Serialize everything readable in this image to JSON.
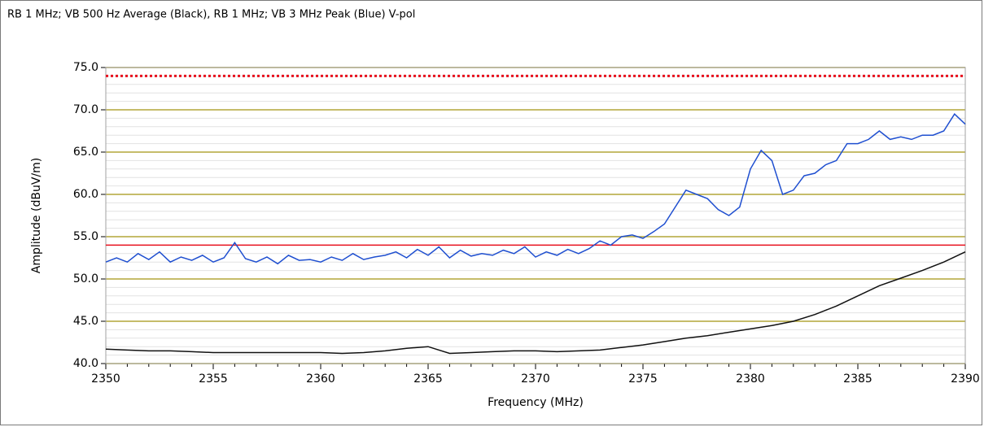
{
  "chart_data": {
    "type": "line",
    "title": "RB 1 MHz; VB 500 Hz Average (Black), RB 1 MHz; VB 3 MHz Peak (Blue) V-pol",
    "xlabel": "Frequency (MHz)",
    "ylabel": "Amplitude (dBuV/m)",
    "xlim": [
      2350,
      2390
    ],
    "ylim": [
      40,
      75
    ],
    "xticks": [
      2350,
      2355,
      2360,
      2365,
      2370,
      2375,
      2380,
      2385,
      2390
    ],
    "yticks": [
      {
        "value": 40,
        "label": "40.0"
      },
      {
        "value": 45,
        "label": "45.0"
      },
      {
        "value": 50,
        "label": "50.0"
      },
      {
        "value": 55,
        "label": "55.0"
      },
      {
        "value": 60,
        "label": "60.0"
      },
      {
        "value": 65,
        "label": "65.0"
      },
      {
        "value": 70,
        "label": "70.0"
      },
      {
        "value": 75,
        "label": "75.0"
      }
    ],
    "grid": true,
    "grid_color": "#b3a638",
    "minor_grid_color": "#e2e2e2",
    "limits": [
      {
        "value": 74,
        "color": "#e8101e",
        "style": "dotted"
      },
      {
        "value": 54,
        "color": "#e8101e",
        "style": "solid"
      }
    ],
    "series": [
      {
        "color": "#1f4fd0",
        "x": [
          2350,
          2350.5,
          2351,
          2351.5,
          2352,
          2352.5,
          2353,
          2353.5,
          2354,
          2354.5,
          2355,
          2355.5,
          2356,
          2356.5,
          2357,
          2357.5,
          2358,
          2358.5,
          2359,
          2359.5,
          2360,
          2360.5,
          2361,
          2361.5,
          2362,
          2362.5,
          2363,
          2363.5,
          2364,
          2364.5,
          2365,
          2365.5,
          2366,
          2366.5,
          2367,
          2367.5,
          2368,
          2368.5,
          2369,
          2369.5,
          2370,
          2370.5,
          2371,
          2371.5,
          2372,
          2372.5,
          2373,
          2373.5,
          2374,
          2374.5,
          2375,
          2375.5,
          2376,
          2376.5,
          2377,
          2377.5,
          2378,
          2378.5,
          2379,
          2379.5,
          2380,
          2380.5,
          2381,
          2381.5,
          2382,
          2382.5,
          2383,
          2383.5,
          2384,
          2384.5,
          2385,
          2385.5,
          2386,
          2386.5,
          2387,
          2387.5,
          2388,
          2388.5,
          2389,
          2389.5,
          2390
        ],
        "values": [
          52,
          52.5,
          52,
          53,
          52.3,
          53.2,
          52,
          52.6,
          52.2,
          52.8,
          52,
          52.5,
          54.3,
          52.4,
          52,
          52.6,
          51.8,
          52.8,
          52.2,
          52.3,
          52,
          52.6,
          52.2,
          53,
          52.3,
          52.6,
          52.8,
          53.2,
          52.5,
          53.5,
          52.8,
          53.8,
          52.5,
          53.4,
          52.7,
          53,
          52.8,
          53.4,
          53,
          53.8,
          52.6,
          53.2,
          52.8,
          53.5,
          53,
          53.6,
          54.5,
          54,
          55,
          55.2,
          54.8,
          55.6,
          56.5,
          58.5,
          60.5,
          60,
          59.5,
          58.2,
          57.5,
          58.5,
          63,
          65.2,
          64,
          60,
          60.5,
          62.2,
          62.5,
          63.5,
          64,
          66,
          66,
          66.5,
          67.5,
          66.5,
          66.8,
          66.5,
          67,
          67,
          67.5,
          69.5,
          68.3
        ]
      },
      {
        "color": "#111111",
        "x": [
          2350,
          2351,
          2352,
          2353,
          2354,
          2355,
          2356,
          2357,
          2358,
          2359,
          2360,
          2361,
          2362,
          2363,
          2364,
          2365,
          2366,
          2367,
          2368,
          2369,
          2370,
          2371,
          2372,
          2373,
          2374,
          2375,
          2376,
          2377,
          2378,
          2379,
          2380,
          2381,
          2382,
          2383,
          2384,
          2385,
          2386,
          2387,
          2388,
          2389,
          2390
        ],
        "values": [
          41.7,
          41.6,
          41.5,
          41.5,
          41.4,
          41.3,
          41.3,
          41.3,
          41.3,
          41.3,
          41.3,
          41.2,
          41.3,
          41.5,
          41.8,
          42,
          41.2,
          41.3,
          41.4,
          41.5,
          41.5,
          41.4,
          41.5,
          41.6,
          41.9,
          42.2,
          42.6,
          43,
          43.3,
          43.7,
          44.1,
          44.5,
          45,
          45.8,
          46.8,
          48,
          49.2,
          50.1,
          51,
          52,
          53.2
        ]
      }
    ]
  }
}
